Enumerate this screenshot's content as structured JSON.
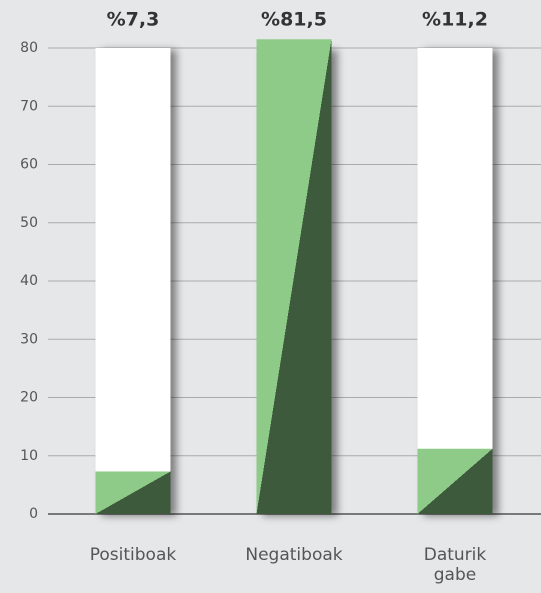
{
  "chart_data": {
    "type": "bar",
    "categories": [
      "Positiboak",
      "Negatiboak",
      "Daturik gabe"
    ],
    "values": [
      7.3,
      81.5,
      11.2
    ],
    "value_labels": [
      "%7,3",
      "%81,5",
      "%11,2"
    ],
    "colors": [
      "#8fcb88",
      "#3d5a3c"
    ],
    "ylim": [
      0,
      80
    ],
    "yticks": [
      0,
      10,
      20,
      30,
      40,
      50,
      60,
      70,
      80
    ],
    "grid": true
  }
}
